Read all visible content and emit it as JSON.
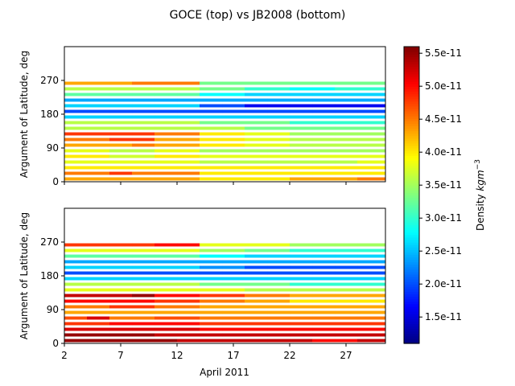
{
  "chart_data": {
    "type": "heatmap",
    "title": "GOCE (top) vs JB2008 (bottom)",
    "xlabel": "April 2011",
    "ylabel": "Argument of Latitude, deg",
    "x_ticks": [
      2,
      7,
      12,
      17,
      22,
      27
    ],
    "y_ticks": [
      0,
      90,
      180,
      270
    ],
    "x_range": [
      2,
      30.5
    ],
    "y_range": [
      0,
      360
    ],
    "colorbar": {
      "label": "Density kgm⁻³",
      "label_base": "Density ",
      "label_unit": "kgm",
      "label_exp": "−3",
      "colormap": "jet",
      "vmin": 1.1e-11,
      "vmax": 5.6e-11,
      "ticks": [
        "1.5e-11",
        "2.0e-11",
        "2.5e-11",
        "3.0e-11",
        "3.5e-11",
        "4.0e-11",
        "4.5e-11",
        "5.0e-11",
        "5.5e-11"
      ],
      "tick_values": [
        1.5e-11,
        2e-11,
        2.5e-11,
        3e-11,
        3.5e-11,
        4e-11,
        4.5e-11,
        5e-11,
        5.5e-11
      ]
    },
    "row_angle_step_deg": 15,
    "x_segment_edges": [
      2,
      4,
      6,
      8,
      10,
      12,
      14,
      16,
      18,
      20,
      22,
      24,
      26,
      28,
      30.5
    ],
    "panels": [
      {
        "name": "GOCE",
        "rows": [
          [
            4.3,
            4.3,
            4.3,
            4.3,
            4.3,
            4.3,
            4.0,
            4.0,
            4.0,
            4.0,
            4.3,
            4.3,
            4.3,
            4.5
          ],
          [
            4.5,
            4.5,
            4.8,
            4.5,
            4.5,
            4.5,
            4.0,
            4.0,
            4.0,
            4.0,
            4.0,
            4.0,
            4.0,
            4.0
          ],
          [
            4.0,
            4.0,
            4.0,
            4.0,
            4.0,
            4.0,
            4.0,
            4.0,
            4.0,
            4.0,
            4.0,
            4.0,
            4.0,
            4.0
          ],
          [
            3.8,
            3.8,
            3.8,
            3.8,
            3.8,
            3.8,
            3.6,
            3.6,
            3.6,
            3.6,
            3.6,
            3.6,
            3.6,
            3.8
          ],
          [
            4.0,
            4.0,
            3.7,
            3.7,
            4.0,
            4.0,
            3.8,
            3.8,
            3.8,
            3.8,
            3.8,
            3.8,
            3.8,
            3.8
          ],
          [
            3.8,
            3.8,
            3.6,
            3.6,
            3.8,
            3.8,
            3.5,
            3.5,
            3.5,
            3.5,
            3.5,
            3.5,
            3.5,
            3.5
          ],
          [
            4.3,
            4.3,
            4.3,
            4.5,
            4.3,
            4.3,
            4.0,
            4.0,
            3.8,
            3.8,
            3.6,
            3.6,
            3.6,
            3.6
          ],
          [
            4.5,
            4.5,
            4.8,
            4.8,
            4.3,
            4.3,
            4.0,
            4.0,
            3.8,
            3.8,
            3.6,
            3.6,
            3.6,
            3.6
          ],
          [
            4.8,
            4.8,
            4.8,
            4.8,
            4.5,
            4.5,
            4.0,
            4.0,
            3.8,
            3.8,
            3.5,
            3.5,
            3.5,
            3.5
          ],
          [
            3.6,
            3.6,
            3.6,
            3.6,
            3.6,
            3.6,
            3.6,
            3.6,
            3.3,
            3.3,
            3.3,
            3.3,
            3.3,
            3.3
          ],
          [
            3.6,
            3.6,
            3.6,
            3.6,
            3.6,
            3.6,
            3.3,
            3.3,
            3.3,
            3.3,
            3.0,
            3.0,
            3.0,
            3.0
          ],
          [
            2.6,
            2.6,
            2.6,
            2.6,
            2.6,
            2.6,
            2.6,
            2.6,
            2.6,
            2.6,
            2.6,
            2.6,
            2.6,
            2.6
          ],
          [
            2.0,
            2.0,
            2.0,
            2.0,
            2.0,
            2.0,
            2.0,
            2.0,
            2.0,
            2.0,
            2.0,
            2.0,
            2.0,
            2.0
          ],
          [
            2.6,
            2.6,
            2.6,
            2.6,
            2.6,
            2.6,
            2.0,
            2.0,
            1.6,
            1.6,
            1.6,
            1.6,
            1.6,
            1.6
          ],
          [
            2.4,
            2.4,
            2.4,
            2.4,
            2.4,
            2.4,
            2.4,
            2.4,
            2.4,
            2.4,
            2.4,
            2.4,
            2.4,
            2.4
          ],
          [
            3.2,
            3.2,
            3.2,
            3.2,
            3.2,
            3.2,
            2.8,
            2.8,
            2.6,
            2.6,
            2.6,
            2.6,
            2.6,
            2.6
          ],
          [
            3.6,
            3.6,
            3.6,
            3.6,
            3.6,
            3.6,
            3.3,
            3.3,
            3.0,
            3.0,
            2.8,
            2.8,
            3.0,
            3.0
          ],
          [
            4.3,
            4.3,
            4.3,
            4.5,
            4.5,
            4.5,
            3.3,
            3.3,
            3.3,
            3.3,
            3.3,
            3.3,
            3.3,
            3.3
          ]
        ]
      },
      {
        "name": "JB2008",
        "rows": [
          [
            5.5,
            5.5,
            5.5,
            5.5,
            5.5,
            5.3,
            5.3,
            5.3,
            5.3,
            5.3,
            5.3,
            5.0,
            5.0,
            5.3
          ],
          [
            5.5,
            5.5,
            5.5,
            5.5,
            5.3,
            5.3,
            5.3,
            5.3,
            5.3,
            5.3,
            5.3,
            5.3,
            5.3,
            5.3
          ],
          [
            5.2,
            5.2,
            5.2,
            5.2,
            5.2,
            5.2,
            5.0,
            5.0,
            5.0,
            5.0,
            5.0,
            5.0,
            5.0,
            5.0
          ],
          [
            4.8,
            4.8,
            5.0,
            5.0,
            5.0,
            5.0,
            4.8,
            4.8,
            4.8,
            4.8,
            4.8,
            4.8,
            4.8,
            4.8
          ],
          [
            4.7,
            5.2,
            4.5,
            4.5,
            4.7,
            4.7,
            4.5,
            4.5,
            4.5,
            4.5,
            4.5,
            4.5,
            4.5,
            4.5
          ],
          [
            4.3,
            4.3,
            4.3,
            4.3,
            4.3,
            4.3,
            4.3,
            4.3,
            4.3,
            4.3,
            4.3,
            4.3,
            4.3,
            4.3
          ],
          [
            4.5,
            4.5,
            4.8,
            4.8,
            4.5,
            4.5,
            4.3,
            4.3,
            4.3,
            4.3,
            4.3,
            4.3,
            4.3,
            4.3
          ],
          [
            5.0,
            5.0,
            5.0,
            5.0,
            4.8,
            4.8,
            4.5,
            4.5,
            4.3,
            4.3,
            4.0,
            4.0,
            4.0,
            4.0
          ],
          [
            5.3,
            5.3,
            5.3,
            5.5,
            5.0,
            5.0,
            4.8,
            4.8,
            4.5,
            4.5,
            4.3,
            4.3,
            4.3,
            4.3
          ],
          [
            3.8,
            3.8,
            3.8,
            3.8,
            3.8,
            3.8,
            3.8,
            3.8,
            3.6,
            3.6,
            3.6,
            3.6,
            3.6,
            3.6
          ],
          [
            3.6,
            3.6,
            3.6,
            3.6,
            3.6,
            3.6,
            3.3,
            3.3,
            3.3,
            3.3,
            3.0,
            3.0,
            3.0,
            3.0
          ],
          [
            2.6,
            2.6,
            2.6,
            2.6,
            2.6,
            2.6,
            2.6,
            2.6,
            2.6,
            2.6,
            2.6,
            2.6,
            2.6,
            2.6
          ],
          [
            2.0,
            2.0,
            2.0,
            2.0,
            2.0,
            2.0,
            2.0,
            2.0,
            2.0,
            2.0,
            2.0,
            2.0,
            2.0,
            2.0
          ],
          [
            2.6,
            2.6,
            2.6,
            2.6,
            2.6,
            2.6,
            2.3,
            2.3,
            2.0,
            2.0,
            2.0,
            2.0,
            2.0,
            2.0
          ],
          [
            2.4,
            2.4,
            2.4,
            2.4,
            2.4,
            2.4,
            2.4,
            2.4,
            2.4,
            2.4,
            2.4,
            2.4,
            2.4,
            2.4
          ],
          [
            3.2,
            3.2,
            3.2,
            3.2,
            3.2,
            3.2,
            2.8,
            2.8,
            2.6,
            2.6,
            2.6,
            2.6,
            2.6,
            2.6
          ],
          [
            3.8,
            3.8,
            3.8,
            3.8,
            3.8,
            3.8,
            3.5,
            3.5,
            3.3,
            3.3,
            3.0,
            3.0,
            3.0,
            3.0
          ],
          [
            4.8,
            4.8,
            4.8,
            4.8,
            5.0,
            5.0,
            3.8,
            3.8,
            3.8,
            3.8,
            3.5,
            3.5,
            3.5,
            3.5
          ]
        ]
      }
    ]
  }
}
